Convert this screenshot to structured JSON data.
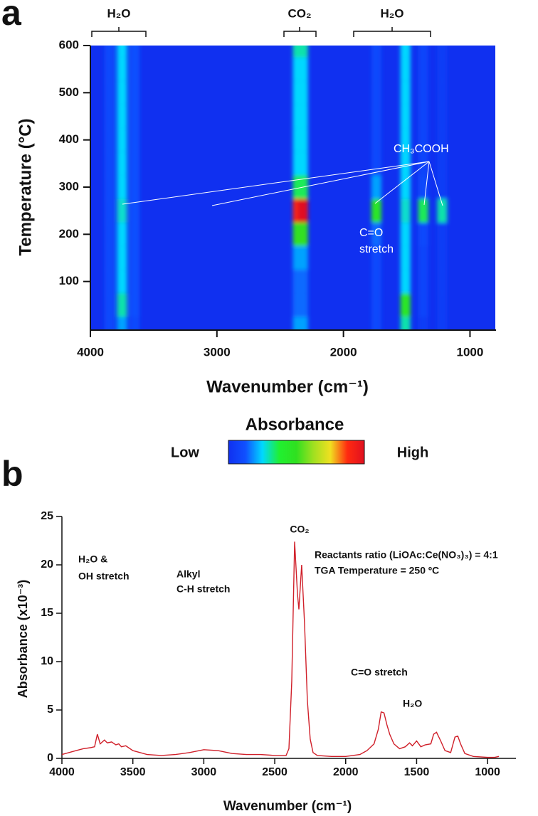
{
  "chart_data": [
    {
      "type": "heatmap",
      "panel": "a",
      "xlabel": "Wavenumber (cm⁻¹)",
      "ylabel": "Temperature (°C)",
      "xlim": [
        4000,
        800
      ],
      "xticks": [
        4000,
        3000,
        2000,
        1000
      ],
      "ylim": [
        0,
        600
      ],
      "yticks": [
        100,
        200,
        300,
        400,
        500,
        600
      ],
      "brackets": [
        "H₂O",
        "CO₂",
        "H₂O"
      ],
      "annotations": [
        "CH₃COOH",
        "C=O",
        "stretch"
      ],
      "colorbar": {
        "title": "Absorbance",
        "low": "Low",
        "high": "High"
      },
      "colorscale": [
        "#1030f0",
        "#1050ff",
        "#00d8ff",
        "#20f030",
        "#30e020",
        "#a0e020",
        "#f0e020",
        "#ff2a10",
        "#e01020"
      ],
      "x": [
        3850,
        3750,
        3650,
        2360,
        2320,
        1740,
        1510,
        1370,
        1220
      ],
      "y": [
        0,
        50,
        100,
        150,
        200,
        250,
        300,
        350,
        400,
        450,
        500,
        550,
        600
      ],
      "z": [
        [
          0.1,
          0.2,
          0.1,
          0.2,
          0.2,
          0.1,
          0.3,
          0.05,
          0.05
        ],
        [
          0.1,
          0.3,
          0.12,
          0.15,
          0.15,
          0.1,
          0.45,
          0.08,
          0.05
        ],
        [
          0.1,
          0.25,
          0.12,
          0.15,
          0.15,
          0.1,
          0.25,
          0.08,
          0.05
        ],
        [
          0.1,
          0.25,
          0.12,
          0.2,
          0.2,
          0.1,
          0.25,
          0.08,
          0.05
        ],
        [
          0.1,
          0.25,
          0.12,
          0.5,
          0.5,
          0.15,
          0.25,
          0.1,
          0.05
        ],
        [
          0.1,
          0.28,
          0.12,
          0.9,
          1.0,
          0.45,
          0.28,
          0.35,
          0.3
        ],
        [
          0.1,
          0.25,
          0.12,
          0.35,
          0.35,
          0.2,
          0.25,
          0.1,
          0.05
        ],
        [
          0.1,
          0.25,
          0.12,
          0.25,
          0.25,
          0.1,
          0.25,
          0.08,
          0.05
        ],
        [
          0.1,
          0.25,
          0.12,
          0.25,
          0.25,
          0.1,
          0.25,
          0.08,
          0.05
        ],
        [
          0.1,
          0.25,
          0.12,
          0.25,
          0.25,
          0.1,
          0.25,
          0.08,
          0.05
        ],
        [
          0.1,
          0.25,
          0.12,
          0.25,
          0.25,
          0.1,
          0.25,
          0.08,
          0.05
        ],
        [
          0.1,
          0.25,
          0.12,
          0.25,
          0.25,
          0.1,
          0.25,
          0.08,
          0.05
        ],
        [
          0.1,
          0.25,
          0.12,
          0.3,
          0.3,
          0.1,
          0.25,
          0.08,
          0.05
        ]
      ]
    },
    {
      "type": "line",
      "panel": "b",
      "xlabel": "Wavenumber (cm⁻¹)",
      "ylabel": "Absorbance (x10⁻³)",
      "xlim": [
        4000,
        800
      ],
      "xticks": [
        4000,
        3500,
        3000,
        2500,
        2000,
        1500,
        1000
      ],
      "ylim": [
        0,
        25
      ],
      "yticks": [
        0,
        5,
        10,
        15,
        20,
        25
      ],
      "annotations": [
        "CO₂",
        "Reactants ratio (LiOAc:Ce(NO₃)₃) = 4:1",
        "TGA Temperature = 250 ºC",
        "H₂O &",
        "OH stretch",
        "Alkyl",
        "C-H stretch",
        "C=O stretch",
        "H₂O"
      ],
      "color": "#d0202a",
      "x": [
        4000,
        3950,
        3900,
        3850,
        3800,
        3770,
        3750,
        3730,
        3700,
        3680,
        3650,
        3620,
        3600,
        3580,
        3550,
        3500,
        3450,
        3400,
        3300,
        3200,
        3100,
        3000,
        2900,
        2800,
        2700,
        2600,
        2500,
        2420,
        2400,
        2380,
        2360,
        2340,
        2330,
        2310,
        2290,
        2270,
        2250,
        2230,
        2200,
        2100,
        2000,
        1950,
        1900,
        1850,
        1800,
        1770,
        1750,
        1730,
        1710,
        1690,
        1660,
        1620,
        1580,
        1550,
        1530,
        1500,
        1470,
        1440,
        1400,
        1380,
        1360,
        1330,
        1300,
        1260,
        1230,
        1210,
        1190,
        1160,
        1100,
        1000,
        950,
        920
      ],
      "values": [
        0.4,
        0.6,
        0.8,
        1.0,
        1.1,
        1.2,
        2.5,
        1.5,
        1.9,
        1.6,
        1.7,
        1.4,
        1.5,
        1.2,
        1.3,
        0.8,
        0.6,
        0.4,
        0.3,
        0.4,
        0.6,
        0.9,
        0.8,
        0.5,
        0.4,
        0.4,
        0.3,
        0.3,
        1.0,
        8,
        22.4,
        17,
        15.4,
        20,
        14,
        6,
        2,
        0.6,
        0.3,
        0.2,
        0.2,
        0.3,
        0.4,
        0.8,
        1.5,
        3,
        4.8,
        4.7,
        3.5,
        2.5,
        1.5,
        1.0,
        1.2,
        1.6,
        1.3,
        1.8,
        1.2,
        1.4,
        1.5,
        2.5,
        2.7,
        1.8,
        0.8,
        0.6,
        2.2,
        2.3,
        1.5,
        0.5,
        0.2,
        0.1,
        0.1,
        0.2
      ]
    }
  ]
}
